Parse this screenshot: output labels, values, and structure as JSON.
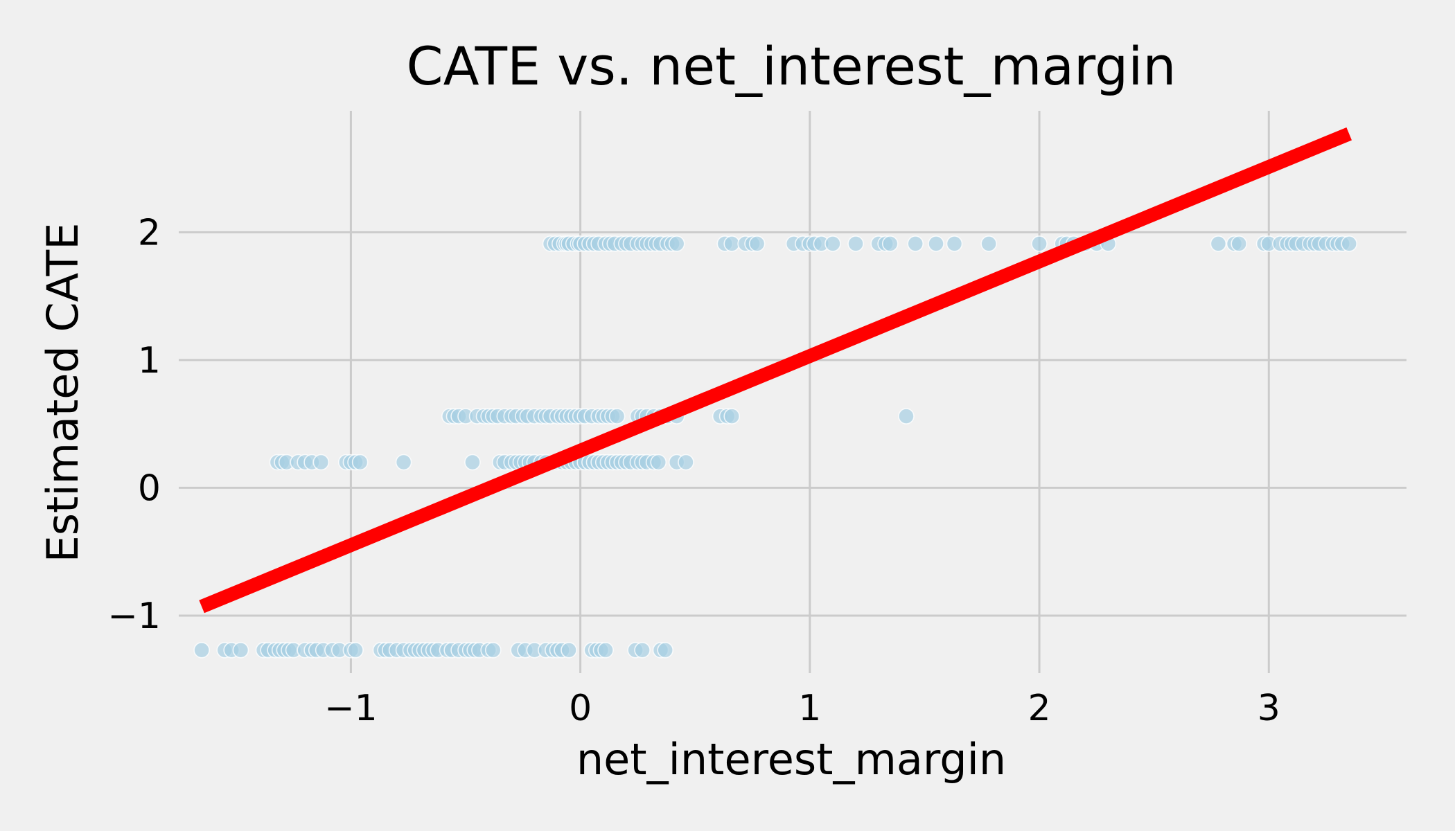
{
  "chart_data": {
    "type": "scatter",
    "title": "CATE vs. net_interest_margin",
    "xlabel": "net_interest_margin",
    "ylabel": "Estimated CATE",
    "xlim": [
      -1.75,
      3.6
    ],
    "ylim": [
      -1.45,
      2.95
    ],
    "xticks": [
      -1,
      0,
      1,
      2,
      3
    ],
    "yticks": [
      -1,
      0,
      1,
      2
    ],
    "xtick_labels": [
      "−1",
      "0",
      "1",
      "2",
      "3"
    ],
    "ytick_labels": [
      "−1",
      "0",
      "1",
      "2"
    ],
    "grid": true,
    "colors": {
      "points": "#a6cee3",
      "fit_line": "#ff0000",
      "background": "#f0f0f0",
      "grid": "#cbcbcb"
    },
    "fit_line": {
      "x": [
        -1.65,
        3.35
      ],
      "y": [
        -0.93,
        2.77
      ]
    },
    "levels": [
      {
        "y": 1.91,
        "x": [
          -0.13,
          -0.11,
          -0.09,
          -0.07,
          -0.06,
          -0.05,
          -0.03,
          -0.01,
          0.0,
          0.02,
          0.04,
          0.06,
          0.08,
          0.11,
          0.13,
          0.15,
          0.18,
          0.2,
          0.22,
          0.25,
          0.27,
          0.29,
          0.31,
          0.33,
          0.35,
          0.38,
          0.4,
          0.42,
          0.63,
          0.66,
          0.72,
          0.75,
          0.77,
          0.93,
          0.97,
          1.0,
          1.02,
          1.05,
          1.1,
          1.2,
          1.3,
          1.33,
          1.35,
          1.46,
          1.55,
          1.63,
          1.78,
          2.0,
          2.1,
          2.12,
          2.15,
          2.2,
          2.25,
          2.3,
          2.78,
          2.85,
          2.87,
          2.98,
          3.0,
          3.05,
          3.08,
          3.1,
          3.12,
          3.15,
          3.18,
          3.2,
          3.22,
          3.25,
          3.28,
          3.3,
          3.32,
          3.35
        ]
      },
      {
        "y": 0.56,
        "x": [
          -0.57,
          -0.55,
          -0.53,
          -0.5,
          -0.45,
          -0.42,
          -0.4,
          -0.38,
          -0.36,
          -0.33,
          -0.3,
          -0.28,
          -0.25,
          -0.23,
          -0.2,
          -0.17,
          -0.15,
          -0.13,
          -0.1,
          -0.08,
          -0.06,
          -0.04,
          -0.02,
          0.0,
          0.02,
          0.05,
          0.08,
          0.1,
          0.12,
          0.14,
          0.16,
          0.25,
          0.27,
          0.29,
          0.32,
          0.35,
          0.38,
          0.42,
          0.61,
          0.64,
          0.66,
          1.42
        ]
      },
      {
        "y": 0.2,
        "x": [
          -1.32,
          -1.3,
          -1.28,
          -1.23,
          -1.2,
          -1.17,
          -1.13,
          -1.02,
          -1.0,
          -0.98,
          -0.96,
          -0.77,
          -0.47,
          -0.35,
          -0.33,
          -0.3,
          -0.28,
          -0.26,
          -0.24,
          -0.22,
          -0.2,
          -0.17,
          -0.15,
          -0.1,
          -0.08,
          -0.06,
          -0.04,
          -0.02,
          0.0,
          0.02,
          0.04,
          0.06,
          0.08,
          0.1,
          0.12,
          0.14,
          0.16,
          0.18,
          0.2,
          0.22,
          0.25,
          0.27,
          0.29,
          0.32,
          0.34,
          0.42,
          0.46
        ]
      },
      {
        "y": -1.27,
        "x": [
          -1.65,
          -1.55,
          -1.52,
          -1.48,
          -1.38,
          -1.36,
          -1.33,
          -1.31,
          -1.29,
          -1.27,
          -1.25,
          -1.2,
          -1.17,
          -1.15,
          -1.12,
          -1.08,
          -1.05,
          -1.0,
          -0.98,
          -0.87,
          -0.85,
          -0.83,
          -0.8,
          -0.77,
          -0.74,
          -0.72,
          -0.7,
          -0.68,
          -0.66,
          -0.64,
          -0.62,
          -0.58,
          -0.56,
          -0.53,
          -0.5,
          -0.48,
          -0.46,
          -0.44,
          -0.4,
          -0.38,
          -0.27,
          -0.24,
          -0.2,
          -0.15,
          -0.12,
          -0.1,
          -0.08,
          -0.05,
          0.05,
          0.07,
          0.09,
          0.11,
          0.24,
          0.27,
          0.35,
          0.37
        ]
      }
    ]
  }
}
